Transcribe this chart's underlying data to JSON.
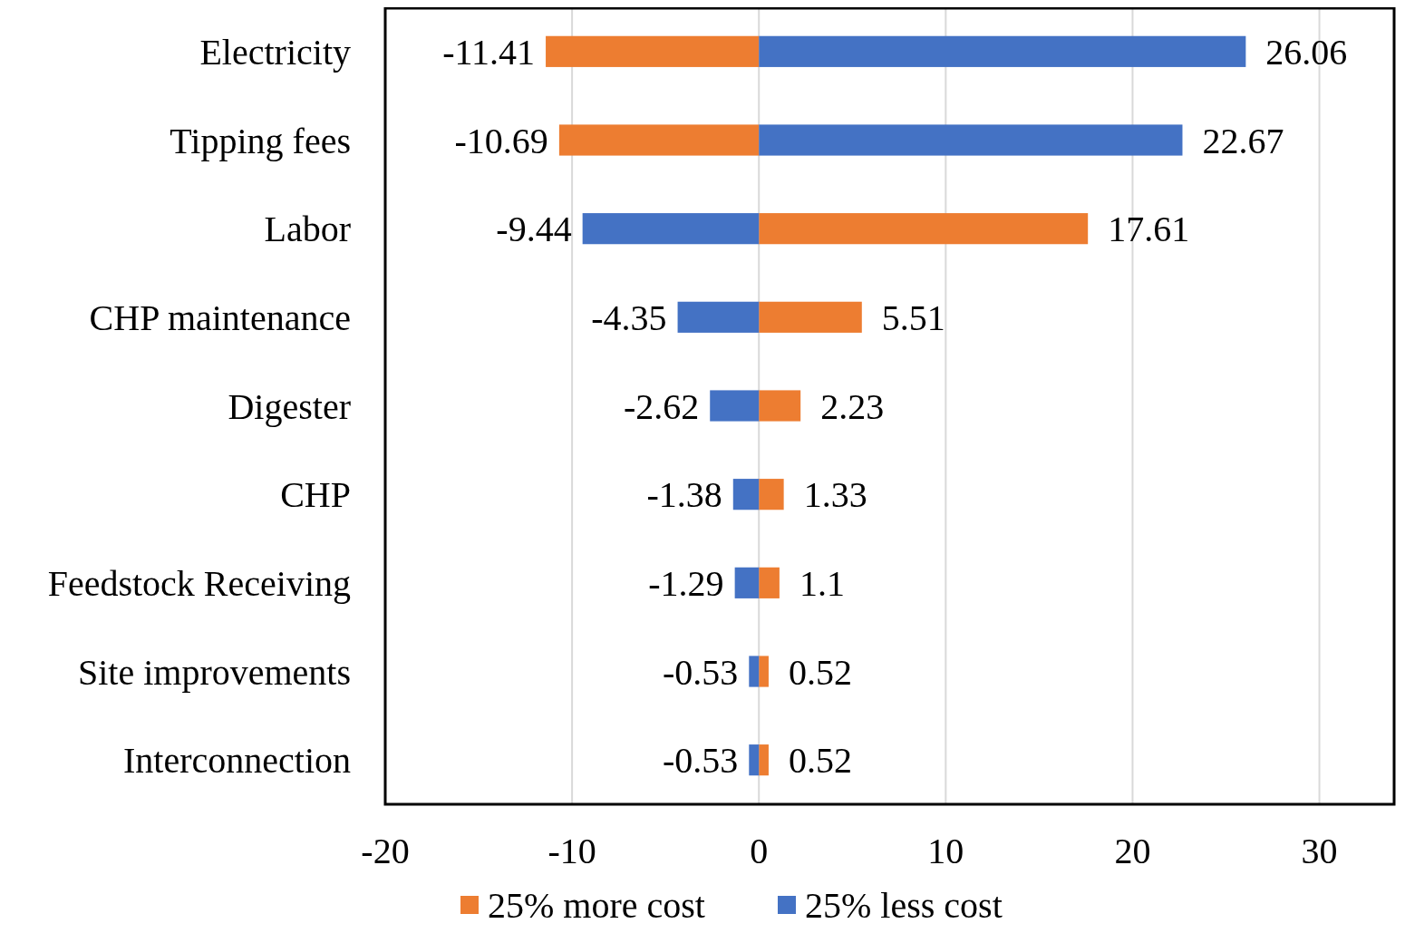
{
  "chart_data": {
    "type": "bar",
    "orientation": "horizontal",
    "categories": [
      "Electricity",
      "Tipping fees",
      "Labor",
      "CHP maintenance",
      "Digester",
      "CHP",
      "Feedstock Receiving",
      "Site improvements",
      "Interconnection"
    ],
    "series": [
      {
        "name": "25% more cost",
        "color": "#ed7d31",
        "values": [
          -11.41,
          -10.69,
          17.61,
          5.51,
          2.23,
          1.33,
          1.1,
          0.52,
          0.52
        ]
      },
      {
        "name": "25% less cost",
        "color": "#4472c4",
        "values": [
          26.06,
          22.67,
          -9.44,
          -4.35,
          -2.62,
          -1.38,
          -1.29,
          -0.53,
          -0.53
        ]
      }
    ],
    "xlim": [
      -20,
      34
    ],
    "xticks": [
      -20,
      -10,
      0,
      10,
      20,
      30
    ],
    "grid": "x",
    "legend": "bottom",
    "stacked": true,
    "data_labels": true
  }
}
